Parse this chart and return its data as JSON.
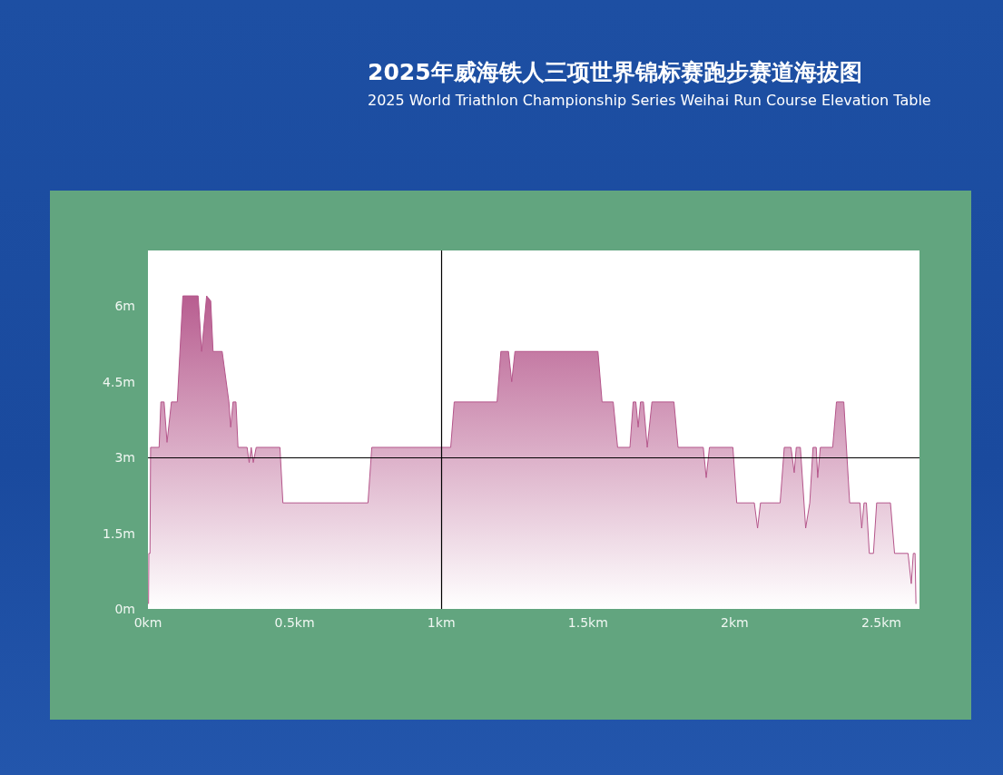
{
  "chart_data": {
    "type": "area",
    "title": "2025年威海铁人三项世界锦标赛跑步赛道海拔图",
    "subtitle": "2025 World Triathlon Championship Series Weihai Run Course Elevation Table",
    "x": [
      0.002,
      0.003,
      0.007,
      0.009,
      0.038,
      0.044,
      0.055,
      0.065,
      0.08,
      0.1,
      0.119,
      0.171,
      0.183,
      0.2,
      0.214,
      0.222,
      0.253,
      0.276,
      0.282,
      0.29,
      0.3,
      0.307,
      0.338,
      0.345,
      0.352,
      0.359,
      0.369,
      0.45,
      0.46,
      0.75,
      0.763,
      1.032,
      1.044,
      1.19,
      1.203,
      1.229,
      1.24,
      1.251,
      1.534,
      1.548,
      1.586,
      1.601,
      1.643,
      1.654,
      1.663,
      1.671,
      1.679,
      1.689,
      1.702,
      1.718,
      1.793,
      1.807,
      1.893,
      1.903,
      1.914,
      1.994,
      2.007,
      2.067,
      2.078,
      2.088,
      2.155,
      2.169,
      2.192,
      2.203,
      2.21,
      2.224,
      2.242,
      2.256,
      2.267,
      2.278,
      2.283,
      2.292,
      2.334,
      2.347,
      2.372,
      2.392,
      2.427,
      2.433,
      2.441,
      2.449,
      2.459,
      2.473,
      2.484,
      2.531,
      2.545,
      2.591,
      2.602,
      2.609,
      2.615,
      2.618
    ],
    "series": [
      {
        "color": "#b4558a",
        "values": [
          0.1,
          1.1,
          1.1,
          3.2,
          3.2,
          4.1,
          4.1,
          3.3,
          4.1,
          4.1,
          6.2,
          6.2,
          5.1,
          6.2,
          6.1,
          5.1,
          5.1,
          4.1,
          3.6,
          4.1,
          4.1,
          3.2,
          3.2,
          2.9,
          3.2,
          2.9,
          3.2,
          3.2,
          2.1,
          2.1,
          3.2,
          3.2,
          4.1,
          4.1,
          5.1,
          5.1,
          4.5,
          5.1,
          5.1,
          4.1,
          4.1,
          3.2,
          3.2,
          4.1,
          4.1,
          3.6,
          4.1,
          4.1,
          3.2,
          4.1,
          4.1,
          3.2,
          3.2,
          2.6,
          3.2,
          3.2,
          2.1,
          2.1,
          1.6,
          2.1,
          2.1,
          3.2,
          3.2,
          2.7,
          3.2,
          3.2,
          1.6,
          2.1,
          3.2,
          3.2,
          2.6,
          3.2,
          3.2,
          4.1,
          4.1,
          2.1,
          2.1,
          1.6,
          2.1,
          2.1,
          1.1,
          1.1,
          2.1,
          2.1,
          1.1,
          1.1,
          0.5,
          1.1,
          1.1,
          0.1
        ]
      }
    ],
    "xlim": [
      0,
      2.63
    ],
    "ylim": [
      0,
      7.1
    ],
    "xticks": [
      {
        "value": 0,
        "label": "0km"
      },
      {
        "value": 0.5,
        "label": "0.5km"
      },
      {
        "value": 1,
        "label": "1km"
      },
      {
        "value": 1.5,
        "label": "1.5km"
      },
      {
        "value": 2,
        "label": "2km"
      },
      {
        "value": 2.5,
        "label": "2.5km"
      }
    ],
    "yticks": [
      {
        "value": 0,
        "label": "0m"
      },
      {
        "value": 1.5,
        "label": "1.5m"
      },
      {
        "value": 3,
        "label": "3m"
      },
      {
        "value": 4.5,
        "label": "4.5m"
      },
      {
        "value": 6,
        "label": "6m"
      }
    ],
    "ref_lines": [
      {
        "axis": "y",
        "value": 3,
        "color": "#000000"
      },
      {
        "axis": "x",
        "value": 1,
        "color": "#000000"
      }
    ],
    "grid": false,
    "marker": "none"
  }
}
